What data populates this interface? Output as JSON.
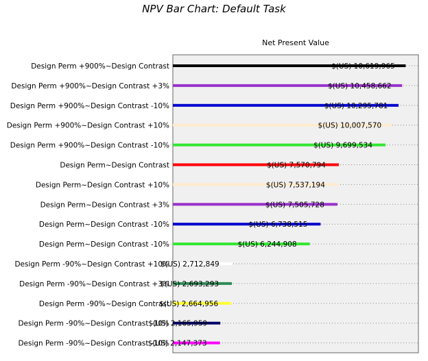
{
  "chart_data": {
    "type": "bar",
    "orientation": "horizontal",
    "title": "NPV Bar Chart: Default Task",
    "xlabel": "Net Present Value",
    "ylabel": "",
    "value_prefix": "$(US) ",
    "categories": [
      "Design Perm +900%~Design Contrast",
      "Design Perm +900%~Design Contrast +3%",
      "Design Perm +900%~Design Contrast -10%",
      "Design Perm +900%~Design Contrast +10%",
      "Design Perm +900%~Design Contrast -10%",
      "Design Perm~Design Contrast",
      "Design Perm~Design Contrast +10%",
      "Design Perm~Design Contrast +3%",
      "Design Perm~Design Contrast -10%",
      "Design Perm~Design Contrast -10%",
      "Design Perm -90%~Design Contrast +10%",
      "Design Perm -90%~Design Contrast +3%",
      "Design Perm -90%~Design Contrast",
      "Design Perm -90%~Design Contrast -10%",
      "Design Perm -90%~Design Contrast -10%"
    ],
    "values": [
      10619965,
      10458662,
      10295781,
      10007570,
      9699534,
      7570794,
      7537194,
      7505728,
      6738515,
      6244908,
      2712849,
      2693293,
      2664956,
      2165959,
      2147373
    ],
    "labels": [
      "10,619,965",
      "10,458,662",
      "10,295,781",
      "10,007,570",
      "9,699,534",
      "7,570,794",
      "7,537,194",
      "7,505,728",
      "6,738,515",
      "6,244,908",
      "2,712,849",
      "2,693,293",
      "2,664,956",
      "2,165,959",
      "2,147,373"
    ],
    "colors": [
      "#000000",
      "#9932cc",
      "#0000cd",
      "#ffebcd",
      "#32e632",
      "#ff0000",
      "#ffebcd",
      "#9932cc",
      "#0000cd",
      "#32e632",
      "#ffffff",
      "#2e8b57",
      "#ffff32",
      "#000066",
      "#ff00ff"
    ],
    "xlim": [
      0,
      11200000
    ],
    "plot_background": "#f0f0f0",
    "grid": "dotted row guides",
    "legend": "none"
  }
}
